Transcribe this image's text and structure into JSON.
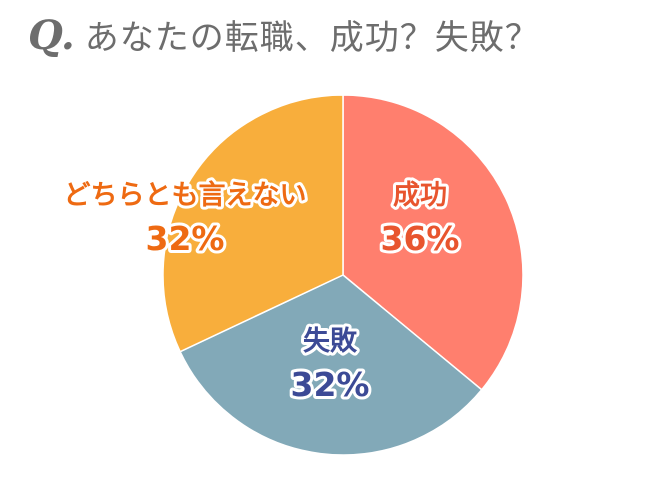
{
  "title": {
    "q_mark": "Q.",
    "question": "あなたの転職、成功？失敗？"
  },
  "colors": {
    "title_text": "#6d6d6d",
    "separator": "#ffffff"
  },
  "chart_data": {
    "type": "pie",
    "title": "あなたの転職、成功？失敗？",
    "start": "12 o'clock, clockwise",
    "slices": [
      {
        "label": "成功",
        "value": 36,
        "value_label": "36%",
        "color": "#ff7f6e",
        "label_color": "#e8552e"
      },
      {
        "label": "失敗",
        "value": 32,
        "value_label": "32%",
        "color": "#82a9b8",
        "label_color": "#3c4a96"
      },
      {
        "label": "どちらとも言えない",
        "value": 32,
        "value_label": "32%",
        "color": "#f8ae3c",
        "label_color": "#ee6a12"
      }
    ]
  }
}
